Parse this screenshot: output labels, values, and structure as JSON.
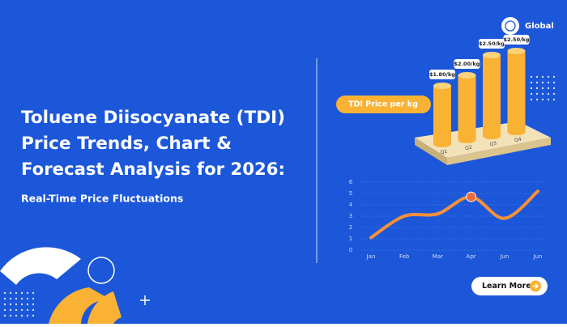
{
  "hero": {
    "title_lines": [
      "Toluene Diisocyanate (TDI)",
      "Price Trends, Chart &",
      "Forecast Analysis for 2026:"
    ],
    "subtitle": "Real-Time Price Fluctuations"
  },
  "badge": "Global",
  "button": "Learn More",
  "chart_data": [
    {
      "type": "bar",
      "title": "TDI Price per kg",
      "categories": [
        "Q1",
        "Q2",
        "Q3",
        "Q4"
      ],
      "values": [
        1.8,
        2.0,
        2.5,
        2.5
      ],
      "value_labels": [
        "$1.80/kg",
        "$2.00/kg",
        "$2.50/kg",
        "$2.50/kg"
      ],
      "color": "#f9b233"
    },
    {
      "type": "line",
      "categories": [
        "Jan",
        "Feb",
        "Mar",
        "Apr",
        "Jun",
        "Jun"
      ],
      "values": [
        1.1,
        3.0,
        3.2,
        4.7,
        2.8,
        5.2
      ],
      "color": "#f88f3a",
      "ylim": [
        0,
        6
      ],
      "yticks": [
        0,
        1,
        2,
        3,
        4,
        5,
        6
      ],
      "grid": true
    }
  ]
}
